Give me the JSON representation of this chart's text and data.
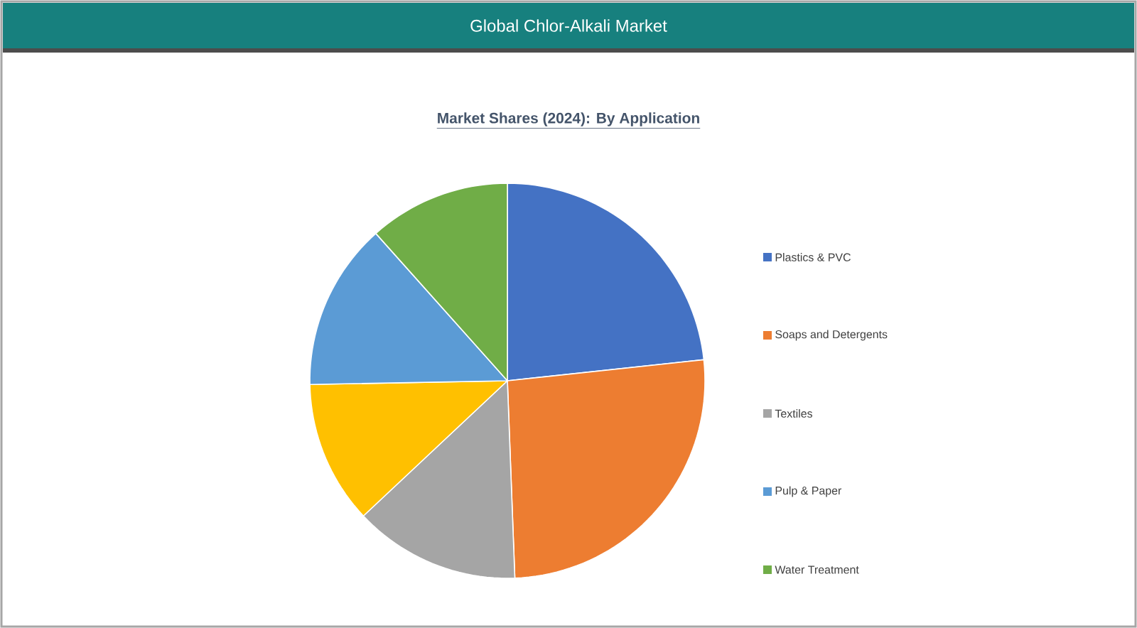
{
  "chart_data": {
    "type": "pie",
    "title": "Global Chlor-Alkali Market",
    "subtitle": "Market Shares (2024): By Application",
    "categories": [
      "Plastics & PVC",
      "Soaps and Detergents",
      "Textiles",
      null,
      "Pulp & Paper",
      "Water Treatment"
    ],
    "values": [
      23.3,
      26.1,
      13.6,
      11.7,
      13.7,
      11.6
    ],
    "colors": [
      "#4472c4",
      "#ed7d31",
      "#a5a5a5",
      "#ffc000",
      "#5b9bd5",
      "#70ad47"
    ],
    "legend": "right"
  }
}
